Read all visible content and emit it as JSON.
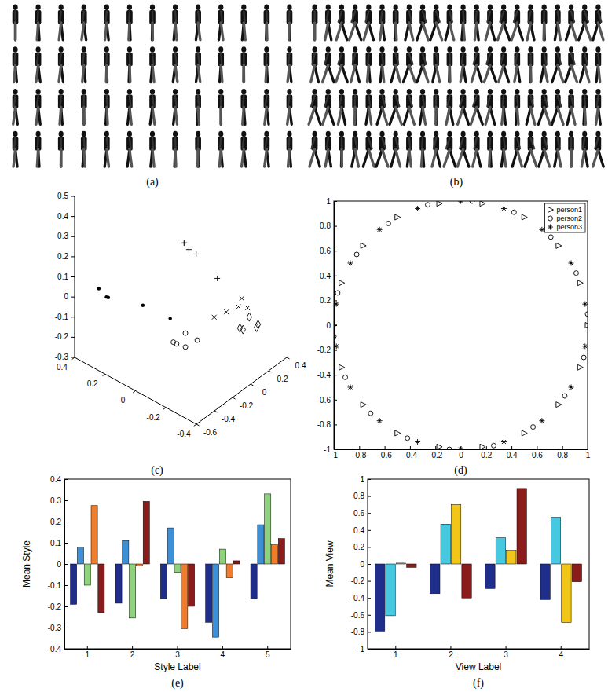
{
  "chart_data": [
    {
      "type": "image",
      "title": "(a)"
    },
    {
      "type": "image",
      "title": "(b)"
    },
    {
      "type": "scatter3d",
      "title": "(c)",
      "xlim": [
        -0.4,
        0.4
      ],
      "ylim": [
        -0.6,
        0.4
      ],
      "zlim": [
        -0.3,
        0.5
      ],
      "xticks": [
        -0.4,
        -0.2,
        0,
        0.2,
        0.4
      ],
      "yticks": [
        -0.6,
        -0.4,
        -0.2,
        0,
        0.2,
        0.4
      ],
      "zticks": [
        -0.3,
        -0.2,
        -0.1,
        0,
        0.1,
        0.2,
        0.3,
        0.4,
        0.5
      ],
      "series": [
        {
          "marker": "point",
          "color": "#000000",
          "x": [
            0.3,
            0.28,
            0.25,
            0.1,
            -0.05
          ],
          "y": [
            -0.5,
            -0.45,
            -0.48,
            -0.35,
            -0.3
          ],
          "z": [
            0.05,
            0,
            0.02,
            0,
            -0.02
          ]
        },
        {
          "marker": "circle",
          "color": "#000000",
          "x": [
            -0.1,
            -0.15,
            -0.12,
            -0.08,
            -0.18
          ],
          "y": [
            -0.35,
            -0.3,
            -0.25,
            -0.28,
            -0.22
          ],
          "z": [
            -0.1,
            -0.12,
            -0.08,
            -0.14,
            -0.1
          ]
        },
        {
          "marker": "diamond",
          "color": "#000000",
          "x": [
            -0.35,
            -0.3,
            -0.38,
            -0.32,
            -0.36
          ],
          "y": [
            0,
            0.05,
            0.1,
            0.12,
            0.15
          ],
          "z": [
            -0.05,
            -0.08,
            -0.06,
            -0.04,
            -0.07
          ]
        },
        {
          "marker": "x",
          "color": "#000000",
          "x": [
            -0.3,
            -0.35,
            -0.38,
            -0.33,
            -0.25
          ],
          "y": [
            -0.1,
            -0.05,
            0,
            0.02,
            -0.15
          ],
          "z": [
            0.05,
            0.08,
            0.07,
            0.09,
            0.02
          ]
        },
        {
          "marker": "plus",
          "color": "#000000",
          "x": [
            -0.2,
            -0.22,
            -0.18,
            -0.25,
            -0.3
          ],
          "y": [
            -0.4,
            -0.38,
            -0.36,
            -0.35,
            -0.2
          ],
          "z": [
            0.45,
            0.42,
            0.43,
            0.4,
            0.25
          ]
        }
      ]
    },
    {
      "type": "scatter",
      "title": "(d)",
      "xlim": [
        -1,
        1
      ],
      "ylim": [
        -1,
        1
      ],
      "xticks": [
        -1,
        -0.8,
        -0.6,
        -0.4,
        -0.2,
        0,
        0.2,
        0.4,
        0.6,
        0.8,
        1
      ],
      "yticks": [
        -1,
        -0.8,
        -0.6,
        -0.4,
        -0.2,
        0,
        0.2,
        0.4,
        0.6,
        0.8,
        1
      ],
      "legend": "top-right",
      "series": [
        {
          "name": "person1",
          "marker": "triangle-right",
          "color": "#000000",
          "x": [
            1,
            0.94,
            0.77,
            0.5,
            0.17,
            -0.17,
            -0.5,
            -0.77,
            -0.94,
            -1,
            -0.94,
            -0.77,
            -0.5,
            -0.17,
            0.17,
            0.5,
            0.77,
            0.94
          ],
          "y": [
            0,
            0.34,
            0.64,
            0.87,
            0.98,
            0.98,
            0.87,
            0.64,
            0.34,
            0,
            -0.34,
            -0.64,
            -0.87,
            -0.98,
            -0.98,
            -0.87,
            -0.64,
            -0.34
          ]
        },
        {
          "name": "person2",
          "marker": "circle",
          "color": "#000000",
          "x": [
            1,
            0.91,
            0.71,
            0.42,
            0.09,
            -0.26,
            -0.57,
            -0.82,
            -0.97,
            -1,
            -0.91,
            -0.71,
            -0.42,
            -0.09,
            0.26,
            0.57,
            0.82,
            0.97
          ],
          "y": [
            0.09,
            0.42,
            0.71,
            0.91,
            1,
            0.97,
            0.82,
            0.57,
            0.26,
            -0.09,
            -0.42,
            -0.71,
            -0.91,
            -1,
            -0.97,
            -0.82,
            -0.57,
            -0.26
          ]
        },
        {
          "name": "person3",
          "marker": "asterisk",
          "color": "#000000",
          "x": [
            0.98,
            0.87,
            0.64,
            0.34,
            0,
            -0.34,
            -0.64,
            -0.87,
            -0.98,
            -0.98,
            -0.87,
            -0.64,
            -0.34,
            0,
            0.34,
            0.64,
            0.87,
            0.98
          ],
          "y": [
            0.17,
            0.5,
            0.77,
            0.94,
            1,
            0.94,
            0.77,
            0.5,
            0.17,
            -0.17,
            -0.5,
            -0.77,
            -0.94,
            -1,
            -0.94,
            -0.77,
            -0.5,
            -0.17
          ]
        }
      ]
    },
    {
      "type": "bar",
      "title": "(e)",
      "xlabel": "Style Label",
      "ylabel": "Mean Style",
      "categories": [
        "1",
        "2",
        "3",
        "4",
        "5"
      ],
      "ylim": [
        -0.4,
        0.4
      ],
      "yticks": [
        -0.4,
        -0.3,
        -0.2,
        -0.1,
        0,
        0.1,
        0.2,
        0.3,
        0.4
      ],
      "series": [
        {
          "color": "#1f2e8a",
          "values": [
            -0.19,
            -0.185,
            -0.165,
            -0.275,
            -0.165
          ]
        },
        {
          "color": "#3d8fd6",
          "values": [
            0.08,
            0.11,
            0.17,
            -0.345,
            0.185
          ]
        },
        {
          "color": "#8ed27c",
          "values": [
            -0.1,
            -0.255,
            -0.04,
            0.07,
            0.33
          ]
        },
        {
          "color": "#f07d2b",
          "values": [
            0.275,
            -0.01,
            -0.305,
            -0.065,
            0.09
          ]
        },
        {
          "color": "#8a1c1c",
          "values": [
            -0.23,
            0.295,
            -0.2,
            0.015,
            0.12
          ]
        }
      ]
    },
    {
      "type": "bar",
      "title": "(f)",
      "xlabel": "View Label",
      "ylabel": "Mean View",
      "categories": [
        "1",
        "2",
        "3",
        "4"
      ],
      "ylim": [
        -1,
        1
      ],
      "yticks": [
        -1,
        -0.8,
        -0.6,
        -0.4,
        -0.2,
        0,
        0.2,
        0.4,
        0.6,
        0.8,
        1
      ],
      "series": [
        {
          "color": "#1f2e8a",
          "values": [
            -0.79,
            -0.35,
            -0.29,
            -0.42
          ]
        },
        {
          "color": "#45c8e0",
          "values": [
            -0.61,
            0.47,
            0.31,
            0.55
          ]
        },
        {
          "color": "#f2c618",
          "values": [
            0.01,
            0.7,
            0.16,
            -0.69
          ]
        },
        {
          "color": "#8a1c1c",
          "values": [
            -0.04,
            -0.4,
            0.89,
            -0.21
          ]
        }
      ]
    }
  ]
}
